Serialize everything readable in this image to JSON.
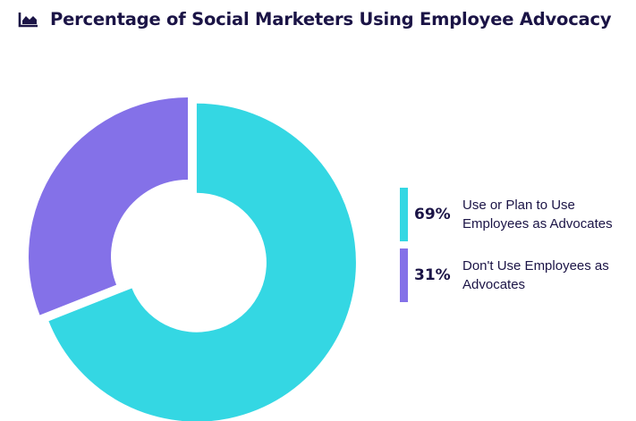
{
  "title": "Percentage of Social Marketers Using Employee Advocacy",
  "title_icon": "area-chart-icon",
  "colors": {
    "title": "#1b1446",
    "use": "#34d7e3",
    "dont_use": "#8471e8"
  },
  "chart_data": {
    "type": "pie",
    "variant": "donut",
    "categories": [
      "Use or Plan to Use Employees as Advocates",
      "Don't Use Employees as Advocates"
    ],
    "values": [
      69,
      31
    ],
    "labels": [
      "69%",
      "31%"
    ],
    "colors": [
      "#34d7e3",
      "#8471e8"
    ],
    "legend_position": "right"
  },
  "legend": [
    {
      "pct": "69%",
      "label": "Use or Plan to Use Employees as Advocates"
    },
    {
      "pct": "31%",
      "label": "Don't Use Employees as Advocates"
    }
  ]
}
